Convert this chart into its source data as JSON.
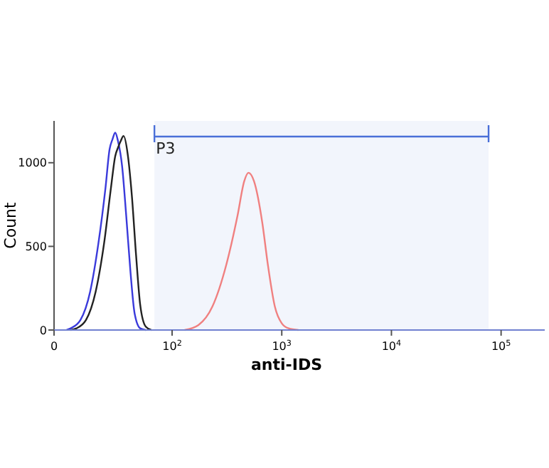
{
  "chart_data": {
    "type": "line",
    "xlabel": "anti-IDS",
    "ylabel": "Count",
    "log": "x",
    "xlim": [
      0,
      250000
    ],
    "ylim": [
      0,
      1250
    ],
    "xticks": [
      0,
      {
        "value": 100,
        "label": "10$^{2}$"
      },
      {
        "value": 1000,
        "label": "10$^{3}$"
      },
      {
        "value": 10000,
        "label": "10$^{4}$"
      },
      {
        "value": 100000,
        "label": "10$^{5}$"
      }
    ],
    "yticks": [
      0,
      500,
      1000
    ],
    "grid": false,
    "marker": "none",
    "line_style": "solid",
    "series": [
      {
        "color": "#3a3adb",
        "x": [
          10.9,
          11.9,
          14.6,
          17.9,
          21.3,
          24.7,
          26.9,
          28.6,
          30.3,
          32.1,
          35.0,
          38.2,
          41.7,
          45.5,
          51.2,
          57.5
        ],
        "values": [
          0,
          10,
          60,
          230,
          520,
          850,
          1080,
          1140,
          1180,
          1130,
          980,
          680,
          350,
          100,
          10,
          0
        ]
      },
      {
        "color": "#222222",
        "x": [
          11.9,
          13.4,
          16.4,
          20.1,
          24.0,
          27.7,
          30.3,
          32.1,
          34.0,
          36.1,
          39.4,
          43.0,
          46.9,
          51.2,
          57.5,
          64.6
        ],
        "values": [
          0,
          10,
          60,
          230,
          520,
          850,
          1040,
          1090,
          1130,
          1160,
          1050,
          800,
          450,
          150,
          20,
          0
        ]
      },
      {
        "color": "#f08080",
        "x": [
          130,
          174,
          233,
          312,
          394,
          455,
          497,
          558,
          665,
          747,
          865,
          1000,
          1156,
          1419
        ],
        "values": [
          0,
          30,
          140,
          390,
          680,
          890,
          940,
          890,
          640,
          390,
          140,
          40,
          10,
          0
        ]
      }
    ],
    "bands": [
      {
        "axis": "x",
        "from": 69,
        "to": 76900,
        "label": "P3",
        "color": "#4a6fd8"
      }
    ]
  }
}
